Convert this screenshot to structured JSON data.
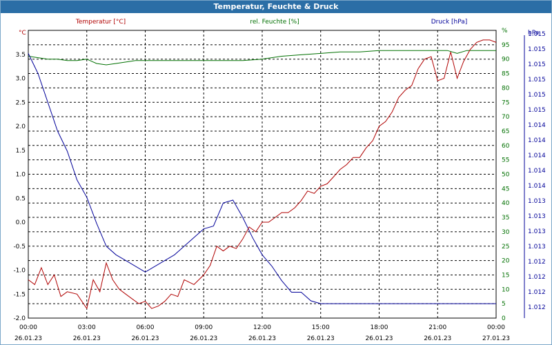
{
  "window": {
    "title": "Temperatur, Feuchte & Druck"
  },
  "colors": {
    "temperature": "#b00000",
    "humidity": "#007000",
    "pressure": "#000099",
    "grid": "#000000",
    "titlebar": "#2b6ea6"
  },
  "chart_data": {
    "type": "line",
    "title": "Temperatur, Feuchte & Druck",
    "x": {
      "start": "26.01.23 00:00",
      "end": "27.01.23 00:00",
      "ticks": [
        {
          "time": "00:00",
          "date": "26.01.23"
        },
        {
          "time": "03:00",
          "date": "26.01.23"
        },
        {
          "time": "06:00",
          "date": "26.01.23"
        },
        {
          "time": "09:00",
          "date": "26.01.23"
        },
        {
          "time": "12:00",
          "date": "26.01.23"
        },
        {
          "time": "15:00",
          "date": "26.01.23"
        },
        {
          "time": "18:00",
          "date": "26.01.23"
        },
        {
          "time": "21:00",
          "date": "26.01.23"
        },
        {
          "time": "00:00",
          "date": "27.01.23"
        }
      ]
    },
    "axes": {
      "left": {
        "unit": "°C",
        "range": [
          -2.0,
          4.0
        ],
        "ticks": [
          "-2.0",
          "-1.5",
          "-1.0",
          "-0.5",
          "0.0",
          "0.5",
          "1.0",
          "1.5",
          "2.0",
          "2.5",
          "3.0",
          "3.5"
        ]
      },
      "humidity": {
        "unit": "%",
        "range": [
          0,
          100
        ],
        "ticks": [
          "0",
          "5",
          "10",
          "15",
          "20",
          "25",
          "30",
          "35",
          "40",
          "45",
          "50",
          "55",
          "60",
          "65",
          "70",
          "75",
          "80",
          "85",
          "90",
          "95",
          "%"
        ]
      },
      "right": {
        "unit": "hPa",
        "ticks": [
          "1.012",
          "1.012",
          "1.012",
          "1.012",
          "1.013",
          "1.013",
          "1.013",
          "1.013",
          "1.014",
          "1.014",
          "1.014",
          "1.014",
          "1.014",
          "1.015",
          "1.015",
          "1.015",
          "1.015",
          "1.015",
          "1.015"
        ]
      }
    },
    "series": [
      {
        "name": "Temperatur [°C]",
        "color": "#b00000",
        "axis": "left",
        "x_hours": [
          0,
          0.33,
          0.67,
          1,
          1.33,
          1.67,
          2,
          2.5,
          3,
          3.33,
          3.67,
          4,
          4.33,
          4.67,
          5,
          5.33,
          5.67,
          6,
          6.33,
          6.67,
          7,
          7.33,
          7.67,
          8,
          8.5,
          9,
          9.33,
          9.67,
          10,
          10.33,
          10.67,
          11,
          11.33,
          11.67,
          12,
          12.33,
          12.67,
          13,
          13.33,
          13.67,
          14,
          14.33,
          14.67,
          15,
          15.33,
          15.67,
          16,
          16.33,
          16.67,
          17,
          17.33,
          17.67,
          18,
          18.33,
          18.67,
          19,
          19.33,
          19.67,
          20,
          20.33,
          20.67,
          21,
          21.33,
          21.67,
          22,
          22.33,
          22.67,
          23,
          23.33,
          23.67,
          24
        ],
        "values": [
          -1.2,
          -1.3,
          -0.95,
          -1.3,
          -1.1,
          -1.55,
          -1.45,
          -1.5,
          -1.8,
          -1.2,
          -1.45,
          -0.85,
          -1.2,
          -1.4,
          -1.5,
          -1.6,
          -1.7,
          -1.65,
          -1.8,
          -1.75,
          -1.65,
          -1.5,
          -1.55,
          -1.2,
          -1.3,
          -1.1,
          -0.9,
          -0.5,
          -0.6,
          -0.5,
          -0.55,
          -0.35,
          -0.1,
          -0.2,
          0.0,
          0.0,
          0.1,
          0.2,
          0.2,
          0.3,
          0.45,
          0.65,
          0.6,
          0.75,
          0.8,
          0.95,
          1.1,
          1.2,
          1.35,
          1.35,
          1.55,
          1.7,
          2.0,
          2.1,
          2.3,
          2.6,
          2.75,
          2.85,
          3.2,
          3.4,
          3.45,
          2.95,
          3.0,
          3.55,
          3.0,
          3.35,
          3.6,
          3.75,
          3.8,
          3.8,
          3.75
        ]
      },
      {
        "name": "rel. Feuchte [%]",
        "color": "#007000",
        "axis": "humidity",
        "x_hours": [
          0,
          0.5,
          1,
          1.5,
          2,
          2.5,
          3,
          3.5,
          4,
          4.5,
          5,
          5.5,
          6,
          7,
          8,
          9,
          10,
          11,
          12,
          13,
          14,
          15,
          16,
          17,
          18,
          19,
          20,
          21,
          21.5,
          22,
          22.5,
          23,
          24
        ],
        "values": [
          91,
          90.5,
          90,
          90,
          89.5,
          89.5,
          90,
          88.5,
          88,
          88.5,
          89,
          89.5,
          89.5,
          89.5,
          89.5,
          89.5,
          89.5,
          89.5,
          90,
          91,
          91.5,
          92,
          92.5,
          92.5,
          93,
          93,
          93,
          93,
          93,
          92,
          93,
          93,
          93
        ]
      },
      {
        "name": "Druck [hPa]",
        "color": "#000099",
        "axis": "right",
        "x_hours": [
          0,
          0.5,
          1,
          1.5,
          2,
          2.5,
          3,
          3.5,
          4,
          4.5,
          5,
          5.5,
          6,
          6.5,
          7,
          7.5,
          8,
          8.5,
          9,
          9.5,
          10,
          10.5,
          11,
          11.5,
          12,
          12.5,
          13,
          13.5,
          14,
          14.5,
          15,
          15.5,
          16,
          16.5,
          17,
          17.5,
          18,
          18.5,
          19,
          19.5,
          20,
          20.5,
          21,
          21.5,
          22,
          22.5,
          23,
          23.5,
          24
        ],
        "values": [
          92,
          85,
          75,
          65,
          58,
          48,
          42,
          33,
          25,
          22,
          20,
          18,
          16,
          18,
          20,
          22,
          25,
          28,
          31,
          32,
          40,
          41,
          35,
          28,
          22,
          18,
          13,
          9,
          9,
          6,
          5,
          5,
          5,
          5,
          5,
          5,
          5,
          5,
          5,
          5,
          5,
          5,
          5,
          5,
          5,
          5,
          5,
          5,
          5
        ]
      }
    ],
    "legend": [
      "Temperatur [°C]",
      "rel. Feuchte [%]",
      "Druck [hPa]"
    ],
    "grid": true
  }
}
